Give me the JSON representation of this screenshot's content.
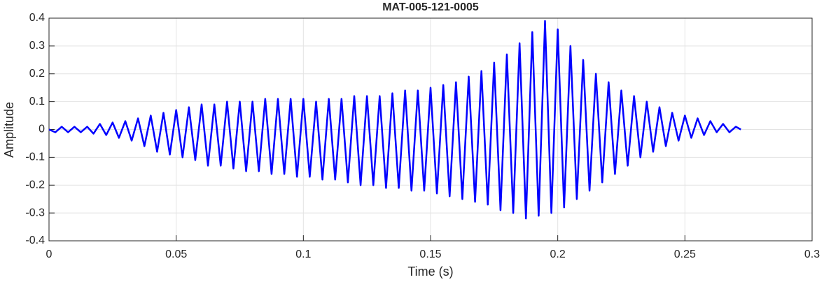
{
  "chart_data": {
    "type": "line",
    "title": "MAT-005-121-0005",
    "x_label": "Time (s)",
    "y_label": "Amplitude",
    "xlim": [
      0,
      0.3
    ],
    "ylim": [
      -0.4,
      0.4
    ],
    "xticks": [
      0,
      0.05,
      0.1,
      0.15,
      0.2,
      0.25,
      0.3
    ],
    "yticks": [
      -0.4,
      -0.3,
      -0.2,
      -0.1,
      0,
      0.1,
      0.2,
      0.3,
      0.4
    ],
    "grid": true,
    "x": [
      0,
      0.0025,
      0.005,
      0.0075,
      0.01,
      0.0125,
      0.015,
      0.0175,
      0.02,
      0.0225,
      0.025,
      0.0275,
      0.03,
      0.0325,
      0.035,
      0.0375,
      0.04,
      0.0425,
      0.045,
      0.0475,
      0.05,
      0.0525,
      0.055,
      0.0575,
      0.06,
      0.0625,
      0.065,
      0.0675,
      0.07,
      0.0725,
      0.075,
      0.0775,
      0.08,
      0.0825,
      0.085,
      0.0875,
      0.09,
      0.0925,
      0.095,
      0.0975,
      0.1,
      0.1025,
      0.105,
      0.1075,
      0.11,
      0.1125,
      0.115,
      0.1175,
      0.12,
      0.1225,
      0.125,
      0.1275,
      0.13,
      0.1325,
      0.135,
      0.1375,
      0.14,
      0.1425,
      0.145,
      0.1475,
      0.15,
      0.1525,
      0.155,
      0.1575,
      0.16,
      0.1625,
      0.165,
      0.1675,
      0.17,
      0.1725,
      0.175,
      0.1775,
      0.18,
      0.1825,
      0.185,
      0.1875,
      0.19,
      0.1925,
      0.195,
      0.1975,
      0.2,
      0.2025,
      0.205,
      0.2075,
      0.21,
      0.2125,
      0.215,
      0.2175,
      0.22,
      0.2225,
      0.225,
      0.2275,
      0.23,
      0.2325,
      0.235,
      0.2375,
      0.24,
      0.2425,
      0.245,
      0.2475,
      0.25,
      0.2525,
      0.255,
      0.2575,
      0.26,
      0.2625,
      0.265,
      0.2675,
      0.27,
      0.272
    ],
    "series": [
      {
        "name": "Amplitude",
        "color": "#0000ff",
        "values": [
          0,
          -0.01,
          0.01,
          -0.01,
          0.01,
          -0.01,
          0.01,
          -0.015,
          0.02,
          -0.02,
          0.025,
          -0.03,
          0.03,
          -0.04,
          0.04,
          -0.06,
          0.05,
          -0.08,
          0.06,
          -0.09,
          0.07,
          -0.1,
          0.08,
          -0.11,
          0.09,
          -0.13,
          0.09,
          -0.13,
          0.1,
          -0.14,
          0.1,
          -0.15,
          0.1,
          -0.15,
          0.11,
          -0.16,
          0.11,
          -0.16,
          0.11,
          -0.17,
          0.11,
          -0.17,
          0.1,
          -0.18,
          0.11,
          -0.18,
          0.11,
          -0.19,
          0.12,
          -0.2,
          0.12,
          -0.2,
          0.12,
          -0.21,
          0.13,
          -0.21,
          0.14,
          -0.22,
          0.14,
          -0.22,
          0.15,
          -0.23,
          0.16,
          -0.24,
          0.17,
          -0.25,
          0.19,
          -0.26,
          0.21,
          -0.27,
          0.24,
          -0.29,
          0.27,
          -0.3,
          0.31,
          -0.32,
          0.35,
          -0.31,
          0.39,
          -0.3,
          0.36,
          -0.28,
          0.3,
          -0.25,
          0.25,
          -0.22,
          0.2,
          -0.19,
          0.17,
          -0.16,
          0.14,
          -0.13,
          0.12,
          -0.1,
          0.1,
          -0.08,
          0.08,
          -0.06,
          0.06,
          -0.04,
          0.05,
          -0.03,
          0.04,
          -0.02,
          0.03,
          -0.01,
          0.02,
          -0.01,
          0.01,
          0
        ]
      }
    ]
  }
}
